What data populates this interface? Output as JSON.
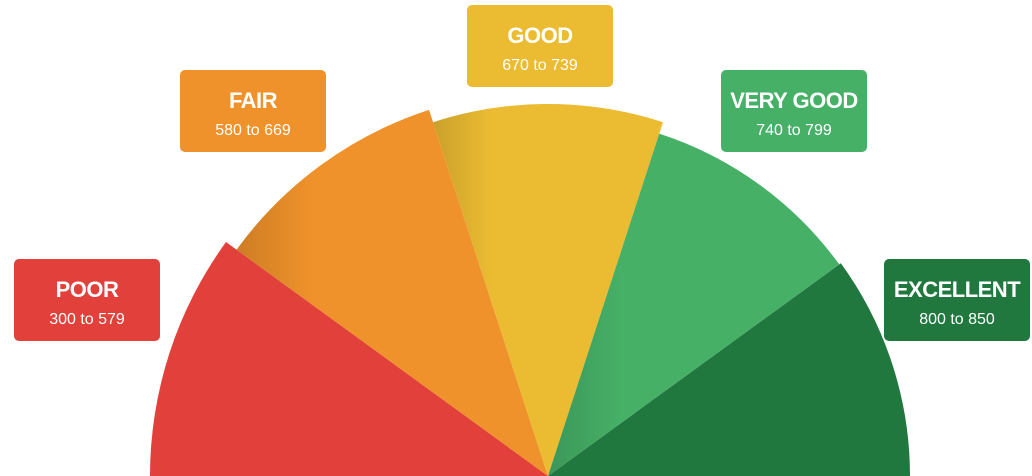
{
  "segments": [
    {
      "label": "POOR",
      "range": "300 to 579",
      "color": "#e2403a"
    },
    {
      "label": "FAIR",
      "range": "580 to 669",
      "color": "#f0922b"
    },
    {
      "label": "GOOD",
      "range": "670 to 739",
      "color": "#ebbb32"
    },
    {
      "label": "VERY GOOD",
      "range": "740 to 799",
      "color": "#46b067"
    },
    {
      "label": "EXCELLENT",
      "range": "800 to 850",
      "color": "#21783f"
    }
  ]
}
